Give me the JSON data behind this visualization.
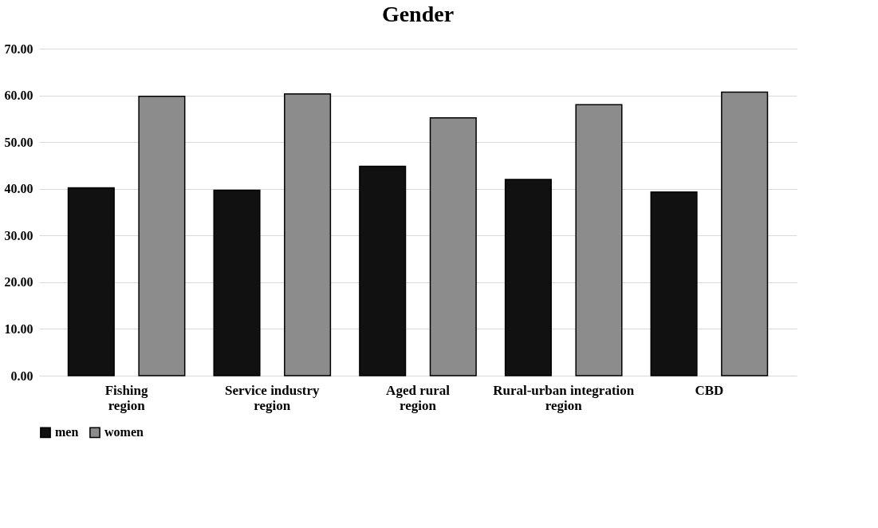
{
  "chart_data": {
    "type": "bar",
    "title": "Gender",
    "categories": [
      "Fishing region",
      "Service industry region",
      "Aged rural region",
      "Rural-urban integration region",
      "CBD"
    ],
    "series": [
      {
        "name": "men",
        "color": "#111111",
        "values": [
          40.2,
          39.7,
          44.8,
          42.0,
          39.3
        ]
      },
      {
        "name": "women",
        "color": "#8c8c8c",
        "values": [
          59.8,
          60.3,
          55.2,
          58.0,
          60.7
        ]
      }
    ],
    "ylim": [
      0,
      70
    ],
    "yticks": [
      {
        "value": 0,
        "label": "0.00"
      },
      {
        "value": 10,
        "label": "10.00"
      },
      {
        "value": 20,
        "label": "20.00"
      },
      {
        "value": 30,
        "label": "30.00"
      },
      {
        "value": 40,
        "label": "40.00"
      },
      {
        "value": 50,
        "label": "50.00"
      },
      {
        "value": 60,
        "label": "60.00"
      },
      {
        "value": 70,
        "label": "70.00"
      }
    ],
    "grid": "y",
    "legend": "bottom"
  }
}
